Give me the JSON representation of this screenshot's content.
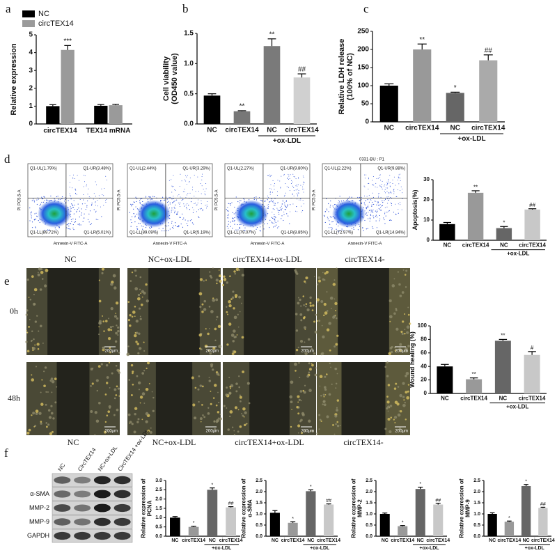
{
  "panel_labels": [
    "a",
    "b",
    "c",
    "d",
    "e",
    "f"
  ],
  "chart_data": [
    {
      "type": "grouped_bar",
      "ylabel": "Relative expression",
      "categories": [
        "circTEX14",
        "TEX14 mRNA"
      ],
      "series": [
        {
          "name": "NC",
          "color": "#000000",
          "values": [
            1.0,
            1.02
          ],
          "errors": [
            0.08,
            0.07
          ],
          "annotations": [
            null,
            null
          ]
        },
        {
          "name": "circTEX14",
          "color": "#9a9a9a",
          "values": [
            4.15,
            1.05
          ],
          "errors": [
            0.25,
            0.05
          ],
          "annotations": [
            "***",
            null
          ]
        }
      ],
      "ylim": [
        0,
        5
      ],
      "yticks": [
        0,
        1,
        2,
        3,
        4,
        5
      ],
      "legend": "upper left"
    },
    {
      "type": "bar",
      "ylabel": [
        "Cell viability",
        "(OD450 value)"
      ],
      "categories": [
        "NC",
        "circTEX14",
        "NC",
        "circTEX14"
      ],
      "group_label": "+ox-LDL",
      "values": [
        0.47,
        0.21,
        1.29,
        0.77
      ],
      "errors": [
        0.03,
        0.01,
        0.12,
        0.06
      ],
      "annotations": [
        null,
        "**",
        "**",
        "##"
      ],
      "colors": [
        "#000000",
        "#777777",
        "#7a7a7a",
        "#d0d0d0"
      ],
      "ylim": [
        0,
        1.5
      ],
      "yticks": [
        {
          "value": 0,
          "label": "0.0"
        },
        0.5,
        {
          "value": 1,
          "label": "1.0"
        },
        1.5
      ]
    },
    {
      "type": "bar",
      "ylabel": [
        "Relative LDH release",
        "(100% of NC)"
      ],
      "categories": [
        "NC",
        "circTEX14",
        "NC",
        "circTEX14"
      ],
      "group_label": "+ox-LDL",
      "values": [
        100,
        200,
        80,
        170
      ],
      "errors": [
        5,
        15,
        2,
        15
      ],
      "annotations": [
        null,
        "**",
        "*",
        "##"
      ],
      "colors": [
        "#000000",
        "#999999",
        "#666666",
        "#aaaaaa"
      ],
      "ylim": [
        0,
        250
      ],
      "yticks": [
        0,
        50,
        100,
        150,
        200,
        250
      ]
    },
    {
      "type": "bar",
      "ylabel": "Apoptosis(%)",
      "categories": [
        "NC",
        "circTEX14",
        "NC",
        "circTEX14"
      ],
      "group_label": "+ox-LDL",
      "values": [
        8,
        23.5,
        6,
        15.2
      ],
      "errors": [
        0.8,
        1,
        0.8,
        0.4
      ],
      "annotations": [
        null,
        "**",
        "*",
        "##"
      ],
      "colors": [
        "#000000",
        "#999999",
        "#666666",
        "#c8c8c8"
      ],
      "ylim": [
        0,
        30
      ],
      "yticks": [
        0,
        10,
        20,
        30
      ]
    },
    {
      "type": "bar",
      "ylabel": "Wound healing (%)",
      "categories": [
        "NC",
        "circTEX14",
        "NC",
        "circTEX14"
      ],
      "group_label": "+ox-LDL",
      "values": [
        40,
        21,
        78,
        57
      ],
      "errors": [
        3,
        2,
        2,
        5
      ],
      "annotations": [
        null,
        "**",
        "**",
        "#"
      ],
      "colors": [
        "#000000",
        "#999999",
        "#666666",
        "#c8c8c8"
      ],
      "ylim": [
        0,
        100
      ],
      "yticks": [
        0,
        20,
        40,
        60,
        80,
        100
      ]
    },
    {
      "type": "bar",
      "ylabel": [
        "Relative expression of",
        "PCNA"
      ],
      "categories": [
        "NC",
        "circTEX14",
        "NC",
        "circTEX14"
      ],
      "group_label": "+ox-LDL",
      "values": [
        1.0,
        0.5,
        2.5,
        1.55
      ],
      "errors": [
        0.06,
        0.04,
        0.1,
        0.04
      ],
      "annotations": [
        null,
        "*",
        "*",
        "##"
      ],
      "colors": [
        "#000000",
        "#999999",
        "#666666",
        "#c8c8c8"
      ],
      "ylim": [
        0,
        3
      ],
      "yticks": [
        {
          "value": 0,
          "label": "0.0"
        },
        0.5,
        {
          "value": 1,
          "label": "1.0"
        },
        1.5,
        {
          "value": 2,
          "label": "2.0"
        },
        2.5,
        {
          "value": 3,
          "label": "3.0"
        }
      ]
    },
    {
      "type": "bar",
      "ylabel": [
        "Relative expression of",
        "α-SMA"
      ],
      "categories": [
        "NC",
        "circTEX14",
        "NC",
        "circTEX14"
      ],
      "group_label": "+ox-LDL",
      "values": [
        1.05,
        0.6,
        2.02,
        1.42
      ],
      "errors": [
        0.1,
        0.05,
        0.06,
        0.03
      ],
      "annotations": [
        null,
        "*",
        "*",
        "##"
      ],
      "colors": [
        "#000000",
        "#999999",
        "#666666",
        "#c8c8c8"
      ],
      "ylim": [
        0,
        2.5
      ],
      "yticks": [
        {
          "value": 0,
          "label": "0.0"
        },
        0.5,
        {
          "value": 1,
          "label": "1.0"
        },
        1.5,
        {
          "value": 2,
          "label": "2.0"
        },
        2.5
      ]
    },
    {
      "type": "bar",
      "ylabel": [
        "Relative expression of",
        "MMP-2"
      ],
      "categories": [
        "NC",
        "circTEX14",
        "NC",
        "circTEX14"
      ],
      "group_label": "+ox-LDL",
      "values": [
        1.0,
        0.45,
        2.12,
        1.42
      ],
      "errors": [
        0.04,
        0.03,
        0.08,
        0.06
      ],
      "annotations": [
        null,
        "*",
        "*",
        "##"
      ],
      "colors": [
        "#000000",
        "#999999",
        "#666666",
        "#c8c8c8"
      ],
      "ylim": [
        0,
        2.5
      ],
      "yticks": [
        {
          "value": 0,
          "label": "0.0"
        },
        0.5,
        {
          "value": 1,
          "label": "1.0"
        },
        1.5,
        {
          "value": 2,
          "label": "2.0"
        },
        2.5
      ]
    },
    {
      "type": "bar",
      "ylabel": [
        "Relative expression of",
        "MMP-9"
      ],
      "categories": [
        "NC",
        "circTEX14",
        "NC",
        "circTEX14"
      ],
      "group_label": "+ox-LDL",
      "values": [
        1.0,
        0.65,
        2.25,
        1.27
      ],
      "errors": [
        0.05,
        0.03,
        0.07,
        0.03
      ],
      "annotations": [
        null,
        "*",
        "*",
        "##"
      ],
      "colors": [
        "#000000",
        "#999999",
        "#666666",
        "#c8c8c8"
      ],
      "ylim": [
        0,
        2.5
      ],
      "yticks": [
        {
          "value": 0,
          "label": "0.0"
        },
        0.5,
        {
          "value": 1,
          "label": "1.0"
        },
        1.5,
        {
          "value": 2,
          "label": "2.0"
        },
        2.5
      ]
    }
  ],
  "flow_cytometry": {
    "y_axis_label": "PI PC5.5-A",
    "x_axis_label": "Annexin-V FITC-A",
    "gate_label": "0331-BU : P1",
    "plots": [
      {
        "caption": "NC",
        "quadrants": [
          "Q1-UL(1.79%)",
          "Q1-UR(3.48%)",
          "Q1-LL(89.72%)",
          "Q1-LR(5.01%)"
        ]
      },
      {
        "caption": "NC+ox-LDL",
        "quadrants": [
          "Q1-UL(2.44%)",
          "Q1-UR(3.29%)",
          "Q1-LL(89.09%)",
          "Q1-LR(5.19%)"
        ]
      },
      {
        "caption": "circTEX14+ox-LDL",
        "quadrants": [
          "Q1-UL(2.27%)",
          "Q1-UR(9.80%)",
          "Q1-LL(79.07%)",
          "Q1-LR(8.85%)"
        ]
      },
      {
        "caption": "circTEX14-",
        "quadrants": [
          "Q1-UL(2.22%)",
          "Q1-UR(9.88%)",
          "Q1-LL(72.97%)",
          "Q1-LR(14.94%)"
        ]
      }
    ]
  },
  "wound_healing": {
    "rows": [
      "0h",
      "48h"
    ],
    "columns": [
      "NC",
      "NC+ox-LDL",
      "circTEX14+ox-LDL",
      "circTEX14-"
    ],
    "scale_bar": "200μm"
  },
  "western_blot": {
    "lanes": [
      "NC",
      "CircTEX14",
      "NC+ox-LDL",
      "CircTEX14 +ox-LDL"
    ],
    "proteins": [
      "α-SMA",
      "MMP-2",
      "MMP-9",
      "GAPDH"
    ]
  }
}
